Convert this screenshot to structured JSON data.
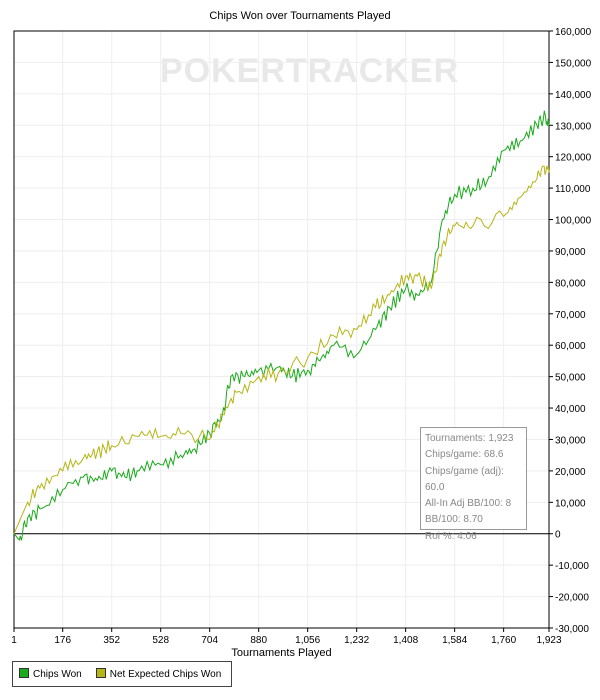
{
  "chart_data": {
    "type": "line",
    "title": "Chips Won over Tournaments Played",
    "xlabel": "Tournaments Played",
    "ylabel": "",
    "watermark": "POKERTRACKER",
    "xlim": [
      1,
      1923
    ],
    "ylim": [
      -30000,
      160000
    ],
    "xticks": [
      "1",
      "176",
      "352",
      "528",
      "704",
      "880",
      "1,056",
      "1,232",
      "1,408",
      "1,584",
      "1,760",
      "1,923"
    ],
    "xtick_values": [
      1,
      176,
      352,
      528,
      704,
      880,
      1056,
      1232,
      1408,
      1584,
      1760,
      1923
    ],
    "ytick_values": [
      160000,
      150000,
      140000,
      130000,
      120000,
      110000,
      100000,
      90000,
      80000,
      70000,
      60000,
      50000,
      40000,
      30000,
      20000,
      10000,
      0,
      -10000,
      -20000,
      -30000
    ],
    "yticks": [
      "160,000",
      "150,000",
      "140,000",
      "130,000",
      "120,000",
      "110,000",
      "100,000",
      "90,000",
      "80,000",
      "70,000",
      "60,000",
      "50,000",
      "40,000",
      "30,000",
      "20,000",
      "10,000",
      "0",
      "-10,000",
      "-20,000",
      "-30,000"
    ],
    "grid": true,
    "legend_position": "bottom-left",
    "series": [
      {
        "name": "Chips Won",
        "color": "#1aaa1a",
        "x": [
          1,
          20,
          50,
          100,
          176,
          250,
          300,
          352,
          400,
          450,
          528,
          600,
          650,
          704,
          750,
          780,
          830,
          880,
          950,
          1000,
          1056,
          1100,
          1150,
          1232,
          1300,
          1350,
          1408,
          1450,
          1500,
          1540,
          1584,
          1650,
          1700,
          1760,
          1820,
          1880,
          1910,
          1923
        ],
        "y": [
          0,
          -2000,
          5000,
          8000,
          14000,
          18000,
          17000,
          20000,
          18000,
          20000,
          22000,
          25000,
          27000,
          32000,
          38000,
          50000,
          50000,
          52000,
          53000,
          50000,
          52000,
          55000,
          60000,
          57000,
          65000,
          72000,
          78000,
          76000,
          80000,
          100000,
          108000,
          110000,
          112000,
          122000,
          125000,
          130000,
          133000,
          130000
        ]
      },
      {
        "name": "Net Expected Chips Won",
        "color": "#b5b516",
        "x": [
          1,
          50,
          100,
          176,
          250,
          300,
          352,
          450,
          528,
          600,
          704,
          750,
          800,
          880,
          950,
          1056,
          1150,
          1232,
          1300,
          1350,
          1408,
          1450,
          1500,
          1540,
          1584,
          1650,
          1760,
          1820,
          1880,
          1900,
          1923
        ],
        "y": [
          0,
          10000,
          16000,
          20000,
          24000,
          26000,
          28000,
          31000,
          31000,
          32000,
          30000,
          38000,
          45000,
          50000,
          51000,
          56000,
          63000,
          65000,
          72000,
          76000,
          82000,
          82000,
          78000,
          92000,
          98000,
          98000,
          101000,
          107000,
          113000,
          117000,
          115000
        ]
      }
    ],
    "stats": [
      "Tournaments: 1,923",
      "Chips/game: 68.6",
      "Chips/game (adj): 60.0",
      "All-In Adj BB/100: 8",
      "BB/100: 8.70",
      "Roi %: 4.06"
    ]
  }
}
